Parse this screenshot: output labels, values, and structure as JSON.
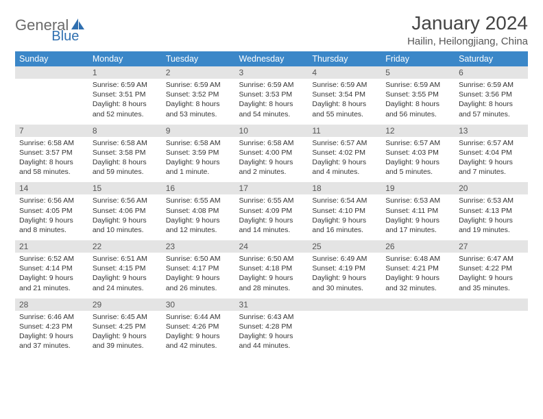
{
  "logo": {
    "part1": "General",
    "part2": "Blue"
  },
  "title": "January 2024",
  "location": "Hailin, Heilongjiang, China",
  "colors": {
    "header_bg": "#3b87c8",
    "header_text": "#ffffff",
    "daynum_bg": "#e4e4e4",
    "border": "#2f6fb0",
    "logo_gray": "#6a6a6a",
    "logo_blue": "#2f6fb0"
  },
  "day_names": [
    "Sunday",
    "Monday",
    "Tuesday",
    "Wednesday",
    "Thursday",
    "Friday",
    "Saturday"
  ],
  "weeks": [
    [
      {
        "n": "",
        "sr": "",
        "ss": "",
        "d1": "",
        "d2": ""
      },
      {
        "n": "1",
        "sr": "Sunrise: 6:59 AM",
        "ss": "Sunset: 3:51 PM",
        "d1": "Daylight: 8 hours",
        "d2": "and 52 minutes."
      },
      {
        "n": "2",
        "sr": "Sunrise: 6:59 AM",
        "ss": "Sunset: 3:52 PM",
        "d1": "Daylight: 8 hours",
        "d2": "and 53 minutes."
      },
      {
        "n": "3",
        "sr": "Sunrise: 6:59 AM",
        "ss": "Sunset: 3:53 PM",
        "d1": "Daylight: 8 hours",
        "d2": "and 54 minutes."
      },
      {
        "n": "4",
        "sr": "Sunrise: 6:59 AM",
        "ss": "Sunset: 3:54 PM",
        "d1": "Daylight: 8 hours",
        "d2": "and 55 minutes."
      },
      {
        "n": "5",
        "sr": "Sunrise: 6:59 AM",
        "ss": "Sunset: 3:55 PM",
        "d1": "Daylight: 8 hours",
        "d2": "and 56 minutes."
      },
      {
        "n": "6",
        "sr": "Sunrise: 6:59 AM",
        "ss": "Sunset: 3:56 PM",
        "d1": "Daylight: 8 hours",
        "d2": "and 57 minutes."
      }
    ],
    [
      {
        "n": "7",
        "sr": "Sunrise: 6:58 AM",
        "ss": "Sunset: 3:57 PM",
        "d1": "Daylight: 8 hours",
        "d2": "and 58 minutes."
      },
      {
        "n": "8",
        "sr": "Sunrise: 6:58 AM",
        "ss": "Sunset: 3:58 PM",
        "d1": "Daylight: 8 hours",
        "d2": "and 59 minutes."
      },
      {
        "n": "9",
        "sr": "Sunrise: 6:58 AM",
        "ss": "Sunset: 3:59 PM",
        "d1": "Daylight: 9 hours",
        "d2": "and 1 minute."
      },
      {
        "n": "10",
        "sr": "Sunrise: 6:58 AM",
        "ss": "Sunset: 4:00 PM",
        "d1": "Daylight: 9 hours",
        "d2": "and 2 minutes."
      },
      {
        "n": "11",
        "sr": "Sunrise: 6:57 AM",
        "ss": "Sunset: 4:02 PM",
        "d1": "Daylight: 9 hours",
        "d2": "and 4 minutes."
      },
      {
        "n": "12",
        "sr": "Sunrise: 6:57 AM",
        "ss": "Sunset: 4:03 PM",
        "d1": "Daylight: 9 hours",
        "d2": "and 5 minutes."
      },
      {
        "n": "13",
        "sr": "Sunrise: 6:57 AM",
        "ss": "Sunset: 4:04 PM",
        "d1": "Daylight: 9 hours",
        "d2": "and 7 minutes."
      }
    ],
    [
      {
        "n": "14",
        "sr": "Sunrise: 6:56 AM",
        "ss": "Sunset: 4:05 PM",
        "d1": "Daylight: 9 hours",
        "d2": "and 8 minutes."
      },
      {
        "n": "15",
        "sr": "Sunrise: 6:56 AM",
        "ss": "Sunset: 4:06 PM",
        "d1": "Daylight: 9 hours",
        "d2": "and 10 minutes."
      },
      {
        "n": "16",
        "sr": "Sunrise: 6:55 AM",
        "ss": "Sunset: 4:08 PM",
        "d1": "Daylight: 9 hours",
        "d2": "and 12 minutes."
      },
      {
        "n": "17",
        "sr": "Sunrise: 6:55 AM",
        "ss": "Sunset: 4:09 PM",
        "d1": "Daylight: 9 hours",
        "d2": "and 14 minutes."
      },
      {
        "n": "18",
        "sr": "Sunrise: 6:54 AM",
        "ss": "Sunset: 4:10 PM",
        "d1": "Daylight: 9 hours",
        "d2": "and 16 minutes."
      },
      {
        "n": "19",
        "sr": "Sunrise: 6:53 AM",
        "ss": "Sunset: 4:11 PM",
        "d1": "Daylight: 9 hours",
        "d2": "and 17 minutes."
      },
      {
        "n": "20",
        "sr": "Sunrise: 6:53 AM",
        "ss": "Sunset: 4:13 PM",
        "d1": "Daylight: 9 hours",
        "d2": "and 19 minutes."
      }
    ],
    [
      {
        "n": "21",
        "sr": "Sunrise: 6:52 AM",
        "ss": "Sunset: 4:14 PM",
        "d1": "Daylight: 9 hours",
        "d2": "and 21 minutes."
      },
      {
        "n": "22",
        "sr": "Sunrise: 6:51 AM",
        "ss": "Sunset: 4:15 PM",
        "d1": "Daylight: 9 hours",
        "d2": "and 24 minutes."
      },
      {
        "n": "23",
        "sr": "Sunrise: 6:50 AM",
        "ss": "Sunset: 4:17 PM",
        "d1": "Daylight: 9 hours",
        "d2": "and 26 minutes."
      },
      {
        "n": "24",
        "sr": "Sunrise: 6:50 AM",
        "ss": "Sunset: 4:18 PM",
        "d1": "Daylight: 9 hours",
        "d2": "and 28 minutes."
      },
      {
        "n": "25",
        "sr": "Sunrise: 6:49 AM",
        "ss": "Sunset: 4:19 PM",
        "d1": "Daylight: 9 hours",
        "d2": "and 30 minutes."
      },
      {
        "n": "26",
        "sr": "Sunrise: 6:48 AM",
        "ss": "Sunset: 4:21 PM",
        "d1": "Daylight: 9 hours",
        "d2": "and 32 minutes."
      },
      {
        "n": "27",
        "sr": "Sunrise: 6:47 AM",
        "ss": "Sunset: 4:22 PM",
        "d1": "Daylight: 9 hours",
        "d2": "and 35 minutes."
      }
    ],
    [
      {
        "n": "28",
        "sr": "Sunrise: 6:46 AM",
        "ss": "Sunset: 4:23 PM",
        "d1": "Daylight: 9 hours",
        "d2": "and 37 minutes."
      },
      {
        "n": "29",
        "sr": "Sunrise: 6:45 AM",
        "ss": "Sunset: 4:25 PM",
        "d1": "Daylight: 9 hours",
        "d2": "and 39 minutes."
      },
      {
        "n": "30",
        "sr": "Sunrise: 6:44 AM",
        "ss": "Sunset: 4:26 PM",
        "d1": "Daylight: 9 hours",
        "d2": "and 42 minutes."
      },
      {
        "n": "31",
        "sr": "Sunrise: 6:43 AM",
        "ss": "Sunset: 4:28 PM",
        "d1": "Daylight: 9 hours",
        "d2": "and 44 minutes."
      },
      {
        "n": "",
        "sr": "",
        "ss": "",
        "d1": "",
        "d2": ""
      },
      {
        "n": "",
        "sr": "",
        "ss": "",
        "d1": "",
        "d2": ""
      },
      {
        "n": "",
        "sr": "",
        "ss": "",
        "d1": "",
        "d2": ""
      }
    ]
  ]
}
